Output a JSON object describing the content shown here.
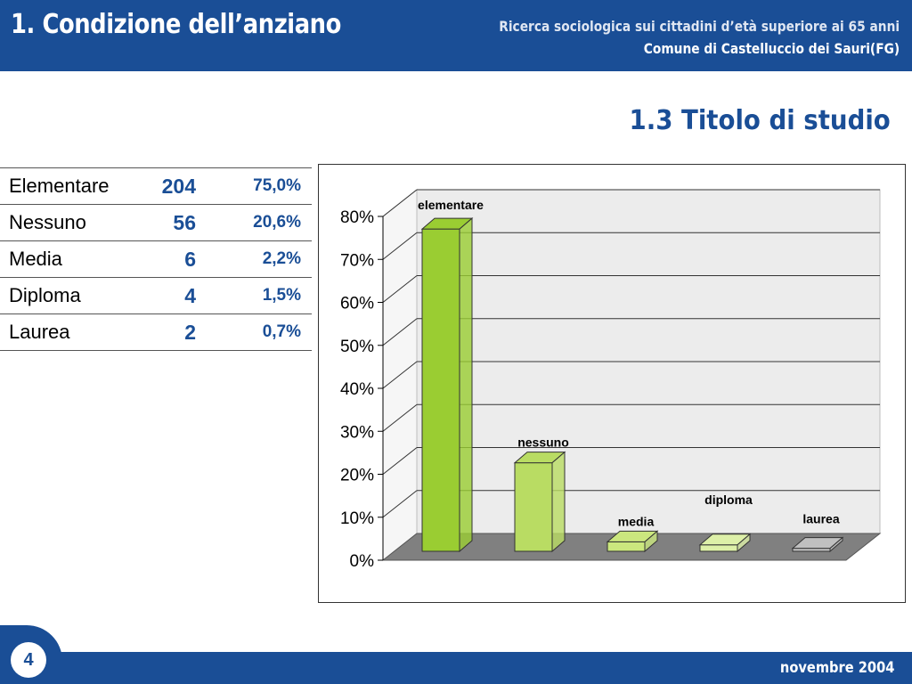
{
  "header": {
    "title": "1. Condizione dell’anziano",
    "subtitle_line1": "Ricerca sociologica sui cittadini d’età superiore ai 65 anni",
    "subtitle_line2": "Comune di Castelluccio dei Sauri(FG)"
  },
  "slide_title": "1.3 Titolo di studio",
  "table": {
    "rows": [
      {
        "label": "Elementare",
        "count": "204",
        "percent": "75,0%"
      },
      {
        "label": "Nessuno",
        "count": "56",
        "percent": "20,6%"
      },
      {
        "label": "Media",
        "count": "6",
        "percent": "2,2%"
      },
      {
        "label": "Diploma",
        "count": "4",
        "percent": "1,5%"
      },
      {
        "label": "Laurea",
        "count": "2",
        "percent": "0,7%"
      }
    ]
  },
  "chart_data": {
    "type": "bar",
    "categories": [
      "elementare",
      "nessuno",
      "media",
      "diploma",
      "laurea"
    ],
    "values": [
      75.0,
      20.6,
      2.2,
      1.5,
      0.7
    ],
    "ylim": [
      0,
      80
    ],
    "yticks": [
      "0%",
      "10%",
      "20%",
      "30%",
      "40%",
      "50%",
      "60%",
      "70%",
      "80%"
    ],
    "three_d": true,
    "grid": true,
    "legend": "none",
    "colors": {
      "bars": [
        "#9acd32",
        "#b9dc63",
        "#cbe77e",
        "#ddf0a8",
        "#c0c0c0"
      ],
      "floor": "#808080",
      "wall": "#ececec"
    }
  },
  "footer": {
    "page_number": "4",
    "date": "novembre 2004"
  }
}
